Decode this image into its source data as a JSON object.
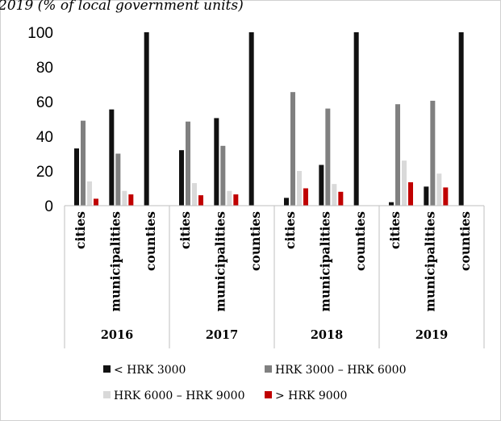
{
  "header_text": "2019 (% of local government units)",
  "chart_data": {
    "type": "bar",
    "years": [
      "2016",
      "2017",
      "2018",
      "2019"
    ],
    "unit_types": [
      "cities",
      "municipalities",
      "counties"
    ],
    "categories": [
      "cities",
      "municipalities",
      "counties",
      "cities",
      "municipalities",
      "counties",
      "cities",
      "municipalities",
      "counties",
      "cities",
      "municipalities",
      "counties"
    ],
    "series": [
      {
        "name": "< HRK 3000",
        "color": "#111111",
        "values": [
          33,
          55.5,
          100,
          32,
          50.5,
          100,
          4.5,
          23.5,
          100,
          2,
          11,
          100
        ]
      },
      {
        "name": "HRK 3000 – HRK 6000",
        "color": "#808080",
        "values": [
          49,
          30,
          0,
          48.5,
          34.5,
          0,
          65.5,
          56,
          0,
          58.5,
          60.5,
          0
        ]
      },
      {
        "name": "HRK 6000 – HRK 9000",
        "color": "#d9d9d9",
        "values": [
          14,
          8.5,
          0,
          13,
          8.5,
          0,
          20,
          12.5,
          0,
          26,
          18.5,
          0
        ]
      },
      {
        "name": "> HRK 9000",
        "color": "#c00000",
        "values": [
          4,
          6.5,
          0,
          6,
          6.5,
          0,
          10,
          8,
          0,
          13.5,
          10.5,
          0
        ]
      }
    ],
    "yticks": [
      0,
      20,
      40,
      60,
      80,
      100
    ],
    "ylim": [
      0,
      100
    ],
    "grid": false,
    "legend_position": "bottom"
  }
}
